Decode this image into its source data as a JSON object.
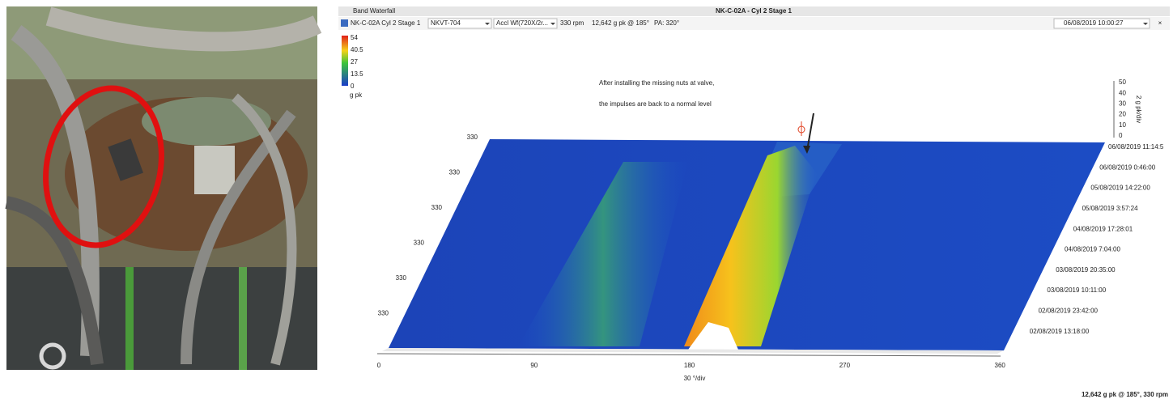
{
  "window": {
    "tab": "Band Waterfall",
    "title": "NK-C-02A - Cyl 2 Stage 1"
  },
  "toolbar": {
    "asset": "NK-C-02A Cyl 2 Stage 1",
    "sensor": "NKVT-704",
    "measurement": "Accl Wf(720X/2r...",
    "speed": "330 rpm",
    "peak": "12,642 g pk @ 185°",
    "phase": "PA: 320°",
    "timestamp": "06/08/2019 10:00:27",
    "close": "×"
  },
  "color_scale": {
    "ticks": [
      "54",
      "40.5",
      "27",
      "13.5",
      "0"
    ],
    "unit": "g pk"
  },
  "annotation": {
    "lines": [
      "After installing the missing nuts at valve,",
      "the   impulses are back to a normal level"
    ]
  },
  "row_labels": [
    "330",
    "330",
    "330",
    "330",
    "330",
    "330"
  ],
  "amplitude_scale": {
    "ticks": [
      "50",
      "40",
      "30",
      "20",
      "10",
      "0"
    ],
    "unit": "2 g pk/div"
  },
  "dates": [
    "06/08/2019 11:14:5",
    "06/08/2019 0:46:00",
    "05/08/2019 14:22:00",
    "05/08/2019 3:57:24",
    "04/08/2019 17:28:01",
    "04/08/2019 7:04:00",
    "03/08/2019 20:35:00",
    "03/08/2019 10:11:00",
    "02/08/2019 23:42:00",
    "02/08/2019 13:18:00"
  ],
  "angle_axis": {
    "ticks": [
      "0",
      "90",
      "180",
      "270",
      "360"
    ],
    "unit": "30 °/div"
  },
  "status": "12,642 g pk @ 185°, 330 rpm"
}
